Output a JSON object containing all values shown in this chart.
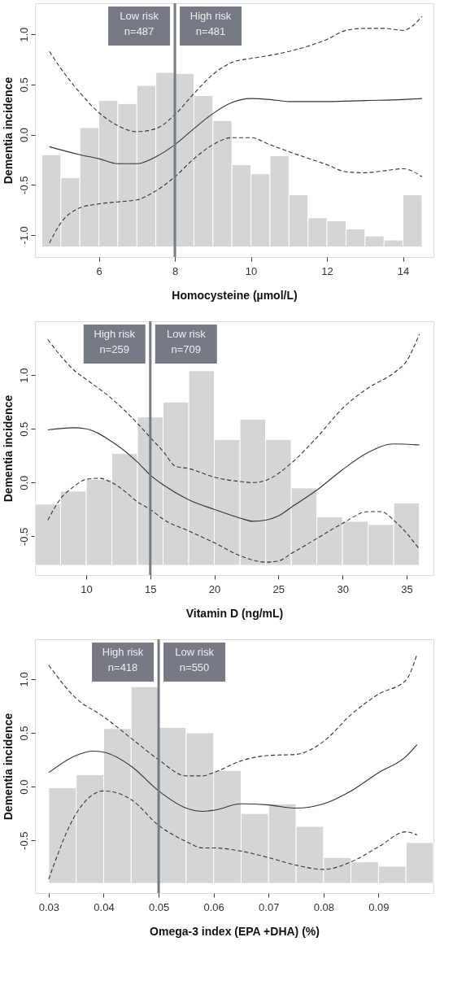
{
  "chart_data": [
    {
      "type": "histogram",
      "xlabel": "Homocysteine (µmol/L)",
      "ylabel": "Dementia incidence",
      "xlim": [
        4.32,
        14.8
      ],
      "ylim": [
        -1.22,
        1.31
      ],
      "xticks": [
        6,
        8,
        10,
        12,
        14
      ],
      "yticks": [
        {
          "value": -1,
          "label": "-1.0"
        },
        {
          "value": -0.5,
          "label": "-0.5"
        },
        {
          "value": 0,
          "label": "0.0"
        },
        {
          "value": 0.5,
          "label": "0.5"
        },
        {
          "value": 1,
          "label": "1.0"
        }
      ],
      "grid": false,
      "ref_lines": [
        {
          "axis": "x",
          "value": 8,
          "color": "#767a84"
        }
      ],
      "annotations": [
        "Low risk\nn=487",
        "High risk\nn=481"
      ],
      "series": [
        {
          "color": "#d4d5d7",
          "bins": [
            4.5,
            5,
            5.5,
            6,
            6.5,
            7,
            7.5,
            8,
            8.5,
            9,
            9.5,
            10,
            10.5,
            11,
            11.5,
            12,
            12.5,
            13,
            13.5,
            14,
            14.5
          ],
          "values": [
            0.92,
            0.69,
            1.19,
            1.46,
            1.43,
            1.61,
            1.74,
            1.73,
            1.51,
            1.26,
            0.82,
            0.73,
            0.91,
            0.52,
            0.29,
            0.26,
            0.18,
            0.11,
            0.07,
            0.52
          ],
          "base": [
            -1.12,
            -1.12,
            -1.12,
            -1.12,
            -1.12,
            -1.12,
            -1.12,
            -1.12,
            -1.12,
            -1.12,
            -1.12,
            -1.12,
            -1.12,
            -1.12,
            -1.12,
            -1.12,
            -1.12,
            -1.12,
            -1.12,
            -1.12
          ]
        },
        {
          "type": "line",
          "color": "#333333",
          "line_style": "solid",
          "x": [
            4.7,
            5.5,
            6,
            6.5,
            7,
            7.5,
            8,
            8.5,
            9,
            9.5,
            10,
            10.5,
            11,
            12,
            13,
            14,
            14.5
          ],
          "values": [
            -0.12,
            -0.2,
            -0.24,
            -0.29,
            -0.29,
            -0.22,
            -0.1,
            0.06,
            0.21,
            0.32,
            0.36,
            0.35,
            0.33,
            0.33,
            0.34,
            0.35,
            0.36
          ]
        },
        {
          "type": "line",
          "color": "#333333",
          "line_style": "dashed",
          "x": [
            4.7,
            5,
            5.5,
            6,
            6.5,
            7,
            7.5,
            8,
            8.5,
            9,
            9.5,
            10,
            10.5,
            11,
            12,
            12.5,
            13,
            13.5,
            14,
            14.5
          ],
          "values": [
            0.83,
            0.66,
            0.42,
            0.22,
            0.09,
            0.03,
            0.06,
            0.2,
            0.41,
            0.6,
            0.72,
            0.76,
            0.79,
            0.83,
            0.95,
            1.04,
            1.06,
            1.06,
            1.04,
            1.18
          ]
        },
        {
          "type": "line",
          "color": "#333333",
          "line_style": "dashed",
          "x": [
            4.7,
            5,
            5.5,
            6,
            6.5,
            7,
            7.5,
            8,
            8.5,
            9,
            9.5,
            10,
            10.5,
            11,
            12,
            12.5,
            13,
            13.5,
            14,
            14.5
          ],
          "values": [
            -1.08,
            -0.88,
            -0.73,
            -0.69,
            -0.67,
            -0.65,
            -0.56,
            -0.42,
            -0.24,
            -0.1,
            -0.03,
            -0.03,
            -0.1,
            -0.17,
            -0.3,
            -0.37,
            -0.38,
            -0.36,
            -0.34,
            -0.42
          ]
        }
      ]
    },
    {
      "type": "histogram",
      "xlabel": "Vitamin D (ng/mL)",
      "ylabel": "Dementia incidence",
      "xlim": [
        6,
        37.1
      ],
      "ylim": [
        -0.86,
        1.5
      ],
      "xticks": [
        10,
        15,
        20,
        25,
        30,
        35
      ],
      "yticks": [
        {
          "value": -0.5,
          "label": "-0.5"
        },
        {
          "value": 0,
          "label": "0.0"
        },
        {
          "value": 0.5,
          "label": "0.5"
        },
        {
          "value": 1,
          "label": "1.0"
        }
      ],
      "grid": false,
      "ref_lines": [
        {
          "axis": "x",
          "value": 15,
          "color": "#767a84"
        }
      ],
      "annotations": [
        "High risk\nn=259",
        "Low risk\nn=709"
      ],
      "series": [
        {
          "color": "#d4d5d7",
          "bins": [
            6,
            8,
            10,
            12,
            14,
            16,
            18,
            20,
            22,
            24,
            26,
            28,
            30,
            32,
            34,
            36
          ],
          "values": [
            0.57,
            0.69,
            0.8,
            1.04,
            1.38,
            1.52,
            1.81,
            1.17,
            1.36,
            1.17,
            0.72,
            0.45,
            0.41,
            0.38,
            0.58
          ],
          "base": [
            -0.77,
            -0.77,
            -0.77,
            -0.77,
            -0.77,
            -0.77,
            -0.77,
            -0.77,
            -0.77,
            -0.77,
            -0.77,
            -0.77,
            -0.77,
            -0.77,
            -0.77
          ]
        },
        {
          "type": "line",
          "color": "#333333",
          "line_style": "solid",
          "x": [
            7,
            9,
            10,
            12,
            14,
            15,
            16,
            18,
            20,
            22,
            23,
            24,
            25,
            26,
            28,
            30,
            32,
            34,
            36
          ],
          "values": [
            0.49,
            0.51,
            0.5,
            0.38,
            0.19,
            0.07,
            -0.02,
            -0.16,
            -0.25,
            -0.33,
            -0.36,
            -0.35,
            -0.31,
            -0.23,
            -0.07,
            0.12,
            0.28,
            0.36,
            0.35
          ]
        },
        {
          "type": "line",
          "color": "#333333",
          "line_style": "dashed",
          "x": [
            7,
            8,
            9,
            10,
            12,
            14,
            15,
            16,
            17,
            18,
            20,
            22,
            23,
            24,
            26,
            28,
            30,
            32,
            34,
            35,
            36
          ],
          "values": [
            1.33,
            1.18,
            1.05,
            0.96,
            0.78,
            0.55,
            0.42,
            0.29,
            0.15,
            0.13,
            0.05,
            0.01,
            0.0,
            0.02,
            0.18,
            0.42,
            0.69,
            0.88,
            1.02,
            1.13,
            1.38
          ]
        },
        {
          "type": "line",
          "color": "#333333",
          "line_style": "dashed",
          "x": [
            7,
            8,
            9,
            10,
            11,
            12,
            13,
            14,
            15,
            16,
            18,
            20,
            22,
            23,
            24,
            25,
            26,
            28,
            30,
            32,
            33,
            34,
            35,
            36
          ],
          "values": [
            -0.35,
            -0.15,
            -0.04,
            0.03,
            0.04,
            0.0,
            -0.08,
            -0.18,
            -0.25,
            -0.34,
            -0.45,
            -0.56,
            -0.68,
            -0.72,
            -0.74,
            -0.73,
            -0.66,
            -0.52,
            -0.38,
            -0.27,
            -0.27,
            -0.35,
            -0.47,
            -0.62
          ]
        }
      ]
    },
    {
      "type": "histogram",
      "xlabel": "Omega-3 index (EPA +DHA) (%)",
      "ylabel": "Dementia incidence",
      "xlim": [
        0.0275,
        0.1
      ],
      "ylim": [
        -0.99,
        1.37
      ],
      "xticks": [
        0.03,
        0.04,
        0.05,
        0.06,
        0.07,
        0.08,
        0.09
      ],
      "yticks": [
        {
          "value": -0.5,
          "label": "-0.5"
        },
        {
          "value": 0,
          "label": "0.0"
        },
        {
          "value": 0.5,
          "label": "0.5"
        },
        {
          "value": 1,
          "label": "1.0"
        }
      ],
      "grid": false,
      "ref_lines": [
        {
          "axis": "x",
          "value": 0.05,
          "color": "#767a84"
        }
      ],
      "annotations": [
        "High risk\nn=418",
        "Low risk\nn=550"
      ],
      "series": [
        {
          "color": "#d4d5d7",
          "bins": [
            0.03,
            0.035,
            0.04,
            0.045,
            0.05,
            0.055,
            0.06,
            0.065,
            0.07,
            0.075,
            0.08,
            0.085,
            0.09,
            0.095,
            0.1
          ],
          "values": [
            0.89,
            1.01,
            1.44,
            1.83,
            1.45,
            1.4,
            1.05,
            0.65,
            0.74,
            0.53,
            0.24,
            0.2,
            0.16,
            0.38
          ],
          "base": [
            -0.9,
            -0.9,
            -0.9,
            -0.9,
            -0.9,
            -0.9,
            -0.9,
            -0.9,
            -0.9,
            -0.9,
            -0.9,
            -0.9,
            -0.9,
            -0.9
          ]
        },
        {
          "type": "line",
          "color": "#333333",
          "line_style": "solid",
          "x": [
            0.03,
            0.035,
            0.038,
            0.04,
            0.045,
            0.05,
            0.055,
            0.058,
            0.06,
            0.065,
            0.07,
            0.075,
            0.08,
            0.085,
            0.09,
            0.095,
            0.097
          ],
          "values": [
            0.13,
            0.29,
            0.33,
            0.32,
            0.19,
            -0.04,
            -0.2,
            -0.23,
            -0.22,
            -0.16,
            -0.17,
            -0.2,
            -0.16,
            -0.04,
            0.13,
            0.28,
            0.39
          ]
        },
        {
          "type": "line",
          "color": "#333333",
          "line_style": "dashed",
          "x": [
            0.03,
            0.035,
            0.04,
            0.045,
            0.05,
            0.055,
            0.058,
            0.06,
            0.065,
            0.07,
            0.075,
            0.08,
            0.085,
            0.09,
            0.095,
            0.097
          ],
          "values": [
            1.13,
            0.82,
            0.65,
            0.45,
            0.25,
            0.1,
            0.1,
            0.13,
            0.24,
            0.29,
            0.3,
            0.42,
            0.67,
            0.86,
            0.99,
            1.23
          ]
        },
        {
          "type": "line",
          "color": "#333333",
          "line_style": "dashed",
          "x": [
            0.03,
            0.035,
            0.04,
            0.045,
            0.05,
            0.055,
            0.058,
            0.06,
            0.065,
            0.07,
            0.075,
            0.08,
            0.085,
            0.09,
            0.095,
            0.097
          ],
          "values": [
            -0.86,
            -0.25,
            -0.04,
            -0.12,
            -0.36,
            -0.51,
            -0.57,
            -0.57,
            -0.6,
            -0.66,
            -0.73,
            -0.77,
            -0.7,
            -0.56,
            -0.42,
            -0.45
          ]
        }
      ]
    }
  ]
}
